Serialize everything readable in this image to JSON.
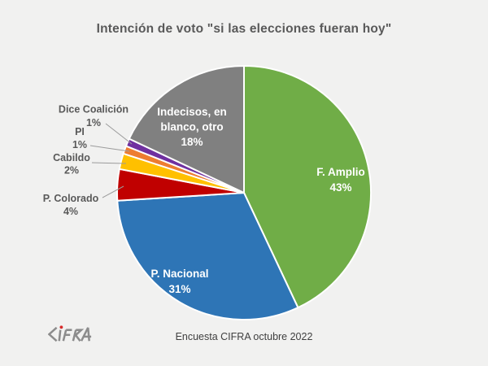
{
  "page": {
    "background_color": "#F1F1F0"
  },
  "logo": {
    "text": "CIFRA",
    "letter_color": "#8C8C8C",
    "dot_color": "#D62A2A"
  },
  "chart_data": {
    "type": "pie",
    "title": "Intención de voto \"si las elecciones fueran hoy\"",
    "caption": "Encuesta CIFRA octubre 2022",
    "total": 100,
    "start_angle": "12 o'clock, clockwise",
    "legend_position": "none (labels on slices and with leader lines)",
    "slices": [
      {
        "label": "F. Amplio",
        "value": 43,
        "pct_label": "43%",
        "color": "#70AD47",
        "label_placement": "inside",
        "label_lines": [
          "F. Amplio"
        ]
      },
      {
        "label": "P. Nacional",
        "value": 31,
        "pct_label": "31%",
        "color": "#2E75B6",
        "label_placement": "inside",
        "label_lines": [
          "P. Nacional"
        ]
      },
      {
        "label": "P. Colorado",
        "value": 4,
        "pct_label": "4%",
        "color": "#C00000",
        "label_placement": "outside",
        "label_lines": [
          "P. Colorado"
        ]
      },
      {
        "label": "Cabildo",
        "value": 2,
        "pct_label": "2%",
        "color": "#FFC000",
        "label_placement": "outside",
        "label_lines": [
          "Cabildo"
        ]
      },
      {
        "label": "PI",
        "value": 1,
        "pct_label": "1%",
        "color": "#ED7D31",
        "label_placement": "outside",
        "label_lines": [
          "PI"
        ]
      },
      {
        "label": "Dice Coalición",
        "value": 1,
        "pct_label": "1%",
        "color": "#7030A0",
        "label_placement": "outside",
        "label_lines": [
          "Dice Coalición"
        ]
      },
      {
        "label": "Indecisos, en blanco, otro",
        "value": 18,
        "pct_label": "18%",
        "color": "#808080",
        "label_placement": "inside",
        "label_lines": [
          "Indecisos, en",
          "blanco, otro"
        ]
      }
    ]
  }
}
